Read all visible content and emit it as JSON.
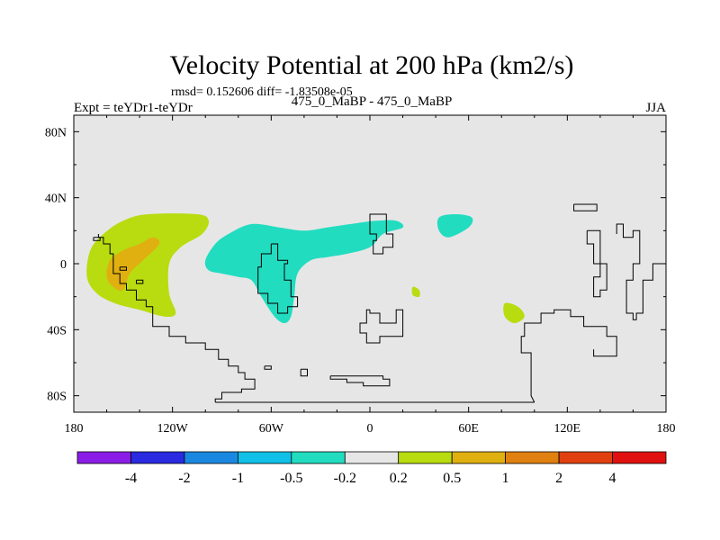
{
  "chart_data": {
    "type": "heatmap",
    "title": "Velocity Potential at 200 hPa (km2/s)",
    "stats_text": "rmsd= 0.152606 diff= -1.83508e-05",
    "left_label": "Expt = teYDr1-teYDr",
    "center_label": "475_0_MaBP - 475_0_MaBP",
    "season": "JJA",
    "xlim": [
      -180,
      180
    ],
    "ylim": [
      -90,
      90
    ],
    "x_ticks": [
      {
        "value": -180,
        "label": "180"
      },
      {
        "value": -120,
        "label": "120W"
      },
      {
        "value": -60,
        "label": "60W"
      },
      {
        "value": 0,
        "label": "0"
      },
      {
        "value": 60,
        "label": "60E"
      },
      {
        "value": 120,
        "label": "120E"
      },
      {
        "value": 180,
        "label": "180"
      }
    ],
    "y_ticks": [
      {
        "value": 80,
        "label": "80N"
      },
      {
        "value": 40,
        "label": "40N"
      },
      {
        "value": 0,
        "label": "0"
      },
      {
        "value": -40,
        "label": "40S"
      },
      {
        "value": -80,
        "label": "80S"
      }
    ],
    "colorbar": {
      "colors": [
        "#8a1ee6",
        "#2a2ae0",
        "#1a88e0",
        "#10c0e6",
        "#22dcc0",
        "#e6e6e6",
        "#b8dc10",
        "#e0b010",
        "#e08010",
        "#e04010",
        "#e01010"
      ],
      "levels": [
        "-4",
        "-2",
        "-1",
        "-0.5",
        "-0.2",
        "0.2",
        "0.5",
        "1",
        "2",
        "4"
      ]
    },
    "background_color": "#e6e6e6",
    "anomaly_regions": [
      {
        "range": "0.2 to 0.5",
        "color": "#b8dc10",
        "points": [
          [
            -172,
            -8
          ],
          [
            -170,
            8
          ],
          [
            -162,
            18
          ],
          [
            -150,
            26
          ],
          [
            -135,
            30
          ],
          [
            -105,
            30
          ],
          [
            -98,
            26
          ],
          [
            -102,
            18
          ],
          [
            -115,
            10
          ],
          [
            -122,
            0
          ],
          [
            -122,
            -18
          ],
          [
            -118,
            -30
          ],
          [
            -125,
            -32
          ],
          [
            -140,
            -28
          ],
          [
            -155,
            -24
          ],
          [
            -166,
            -18
          ]
        ]
      },
      {
        "range": "0.5 to 1",
        "color": "#e0b010",
        "points": [
          [
            -160,
            -8
          ],
          [
            -158,
            2
          ],
          [
            -150,
            8
          ],
          [
            -140,
            12
          ],
          [
            -132,
            16
          ],
          [
            -128,
            12
          ],
          [
            -138,
            2
          ],
          [
            -146,
            -6
          ],
          [
            -150,
            -16
          ],
          [
            -156,
            -14
          ]
        ]
      },
      {
        "range": "-0.5 to -0.2",
        "color": "#22dcc0",
        "points": [
          [
            -100,
            2
          ],
          [
            -94,
            12
          ],
          [
            -86,
            18
          ],
          [
            -72,
            24
          ],
          [
            -55,
            22
          ],
          [
            -40,
            20
          ],
          [
            -26,
            22
          ],
          [
            -12,
            24
          ],
          [
            4,
            26
          ],
          [
            16,
            26
          ],
          [
            20,
            22
          ],
          [
            8,
            18
          ],
          [
            0,
            10
          ],
          [
            -14,
            6
          ],
          [
            -26,
            4
          ],
          [
            -36,
            2
          ],
          [
            -44,
            -6
          ],
          [
            -46,
            -20
          ],
          [
            -48,
            -32
          ],
          [
            -52,
            -36
          ],
          [
            -58,
            -32
          ],
          [
            -66,
            -20
          ],
          [
            -72,
            -10
          ],
          [
            -80,
            -8
          ],
          [
            -90,
            -6
          ],
          [
            -98,
            -4
          ]
        ]
      },
      {
        "range": "-0.5 to -0.2",
        "color": "#22dcc0",
        "points": [
          [
            42,
            28
          ],
          [
            52,
            30
          ],
          [
            62,
            28
          ],
          [
            60,
            22
          ],
          [
            48,
            16
          ],
          [
            42,
            20
          ]
        ]
      },
      {
        "range": "0.2 to 0.5",
        "color": "#b8dc10",
        "points": [
          [
            26,
            -14
          ],
          [
            30,
            -16
          ],
          [
            30,
            -20
          ],
          [
            26,
            -19
          ]
        ]
      },
      {
        "range": "0.2 to 0.5",
        "color": "#b8dc10",
        "points": [
          [
            82,
            -24
          ],
          [
            90,
            -26
          ],
          [
            94,
            -32
          ],
          [
            88,
            -36
          ],
          [
            82,
            -32
          ]
        ]
      }
    ],
    "coastlines": [
      [
        [
          -165,
          18
        ],
        [
          -165,
          16
        ],
        [
          -162,
          16
        ],
        [
          -162,
          12
        ],
        [
          -158,
          12
        ],
        [
          -158,
          6
        ],
        [
          -156,
          6
        ],
        [
          -156,
          -6
        ],
        [
          -152,
          -6
        ],
        [
          -152,
          -12
        ],
        [
          -148,
          -12
        ],
        [
          -148,
          -16
        ],
        [
          -142,
          -16
        ],
        [
          -142,
          -22
        ],
        [
          -136,
          -22
        ],
        [
          -136,
          -26
        ],
        [
          -132,
          -26
        ],
        [
          -132,
          -38
        ],
        [
          -122,
          -38
        ],
        [
          -122,
          -44
        ],
        [
          -112,
          -44
        ],
        [
          -112,
          -48
        ],
        [
          -100,
          -48
        ],
        [
          -100,
          -52
        ],
        [
          -92,
          -52
        ],
        [
          -92,
          -58
        ],
        [
          -86,
          -58
        ],
        [
          -86,
          -62
        ],
        [
          -80,
          -62
        ],
        [
          -80,
          -66
        ],
        [
          -76,
          -66
        ],
        [
          -76,
          -70
        ],
        [
          -70,
          -70
        ],
        [
          -70,
          -76
        ],
        [
          -78,
          -76
        ],
        [
          -78,
          -78
        ],
        [
          -90,
          -78
        ],
        [
          -90,
          -82
        ],
        [
          -94,
          -82
        ],
        [
          -94,
          -84
        ]
      ],
      [
        [
          -94,
          -84
        ],
        [
          60,
          -84
        ],
        [
          100,
          -84
        ]
      ],
      [
        [
          -64,
          -62
        ],
        [
          -64,
          -64
        ],
        [
          -60,
          -64
        ],
        [
          -60,
          -62
        ],
        [
          -64,
          -62
        ]
      ],
      [
        [
          -42,
          -64
        ],
        [
          -42,
          -68
        ],
        [
          -38,
          -68
        ],
        [
          -38,
          -64
        ],
        [
          -42,
          -64
        ]
      ],
      [
        [
          -24,
          -68
        ],
        [
          -24,
          -70
        ],
        [
          -14,
          -70
        ],
        [
          -14,
          -72
        ],
        [
          -4,
          -72
        ],
        [
          -4,
          -74
        ],
        [
          12,
          -74
        ],
        [
          12,
          -70
        ],
        [
          8,
          -70
        ],
        [
          8,
          -68
        ],
        [
          -24,
          -68
        ]
      ],
      [
        [
          -60,
          12
        ],
        [
          -60,
          6
        ],
        [
          -66,
          6
        ],
        [
          -66,
          -2
        ],
        [
          -68,
          -2
        ],
        [
          -68,
          -18
        ],
        [
          -62,
          -18
        ],
        [
          -62,
          -24
        ],
        [
          -56,
          -24
        ],
        [
          -56,
          -30
        ],
        [
          -50,
          -30
        ],
        [
          -50,
          -26
        ],
        [
          -44,
          -26
        ],
        [
          -44,
          -20
        ],
        [
          -48,
          -20
        ],
        [
          -48,
          -10
        ],
        [
          -52,
          -10
        ],
        [
          -52,
          0
        ],
        [
          -50,
          0
        ],
        [
          -50,
          2
        ],
        [
          -56,
          2
        ],
        [
          -56,
          12
        ],
        [
          -60,
          12
        ]
      ],
      [
        [
          0,
          26
        ],
        [
          0,
          30
        ],
        [
          10,
          30
        ],
        [
          10,
          18
        ],
        [
          14,
          18
        ],
        [
          14,
          10
        ],
        [
          8,
          10
        ],
        [
          8,
          6
        ],
        [
          2,
          6
        ],
        [
          2,
          14
        ],
        [
          4,
          14
        ],
        [
          4,
          18
        ],
        [
          0,
          18
        ],
        [
          0,
          26
        ]
      ],
      [
        [
          0,
          -28
        ],
        [
          0,
          -30
        ],
        [
          6,
          -30
        ],
        [
          6,
          -36
        ],
        [
          16,
          -36
        ],
        [
          16,
          -28
        ],
        [
          20,
          -28
        ],
        [
          20,
          -44
        ],
        [
          6,
          -44
        ],
        [
          6,
          -48
        ],
        [
          -2,
          -48
        ],
        [
          -2,
          -42
        ],
        [
          -6,
          -42
        ],
        [
          -6,
          -36
        ],
        [
          -2,
          -36
        ],
        [
          -2,
          -28
        ],
        [
          0,
          -28
        ]
      ],
      [
        [
          136,
          -52
        ],
        [
          136,
          -56
        ],
        [
          150,
          -56
        ],
        [
          150,
          -44
        ],
        [
          144,
          -44
        ],
        [
          144,
          -38
        ],
        [
          130,
          -38
        ],
        [
          130,
          -32
        ],
        [
          122,
          -32
        ],
        [
          122,
          -28
        ],
        [
          112,
          -28
        ],
        [
          112,
          -30
        ],
        [
          104,
          -30
        ],
        [
          104,
          -36
        ],
        [
          94,
          -36
        ],
        [
          94,
          -44
        ],
        [
          92,
          -44
        ],
        [
          92,
          -54
        ],
        [
          98,
          -54
        ],
        [
          98,
          -80
        ],
        [
          100,
          -84
        ]
      ],
      [
        [
          124,
          36
        ],
        [
          124,
          32
        ],
        [
          138,
          32
        ],
        [
          138,
          36
        ],
        [
          124,
          36
        ]
      ],
      [
        [
          132,
          20
        ],
        [
          132,
          12
        ],
        [
          136,
          12
        ],
        [
          136,
          0
        ],
        [
          140,
          0
        ],
        [
          140,
          -8
        ],
        [
          136,
          -8
        ],
        [
          136,
          -20
        ],
        [
          140,
          -20
        ],
        [
          140,
          -16
        ],
        [
          144,
          -16
        ],
        [
          144,
          0
        ],
        [
          140,
          0
        ],
        [
          140,
          20
        ],
        [
          132,
          20
        ]
      ],
      [
        [
          150,
          18
        ],
        [
          150,
          24
        ],
        [
          154,
          24
        ],
        [
          154,
          16
        ],
        [
          160,
          16
        ],
        [
          160,
          20
        ],
        [
          164,
          20
        ],
        [
          164,
          0
        ],
        [
          160,
          0
        ],
        [
          160,
          -10
        ],
        [
          156,
          -10
        ],
        [
          156,
          -30
        ],
        [
          160,
          -30
        ],
        [
          160,
          -34
        ],
        [
          162,
          -34
        ],
        [
          162,
          -30
        ],
        [
          166,
          -30
        ],
        [
          166,
          -10
        ],
        [
          172,
          -10
        ],
        [
          172,
          0
        ],
        [
          180,
          0
        ],
        [
          180,
          20
        ]
      ],
      [
        [
          -168,
          16
        ],
        [
          -168,
          14
        ],
        [
          -164,
          14
        ],
        [
          -164,
          16
        ],
        [
          -168,
          16
        ]
      ],
      [
        [
          -152,
          -2
        ],
        [
          -152,
          -4
        ],
        [
          -148,
          -4
        ],
        [
          -148,
          -2
        ],
        [
          -152,
          -2
        ]
      ],
      [
        [
          -142,
          -10
        ],
        [
          -142,
          -12
        ],
        [
          -138,
          -12
        ],
        [
          -138,
          -10
        ],
        [
          -142,
          -10
        ]
      ]
    ]
  }
}
